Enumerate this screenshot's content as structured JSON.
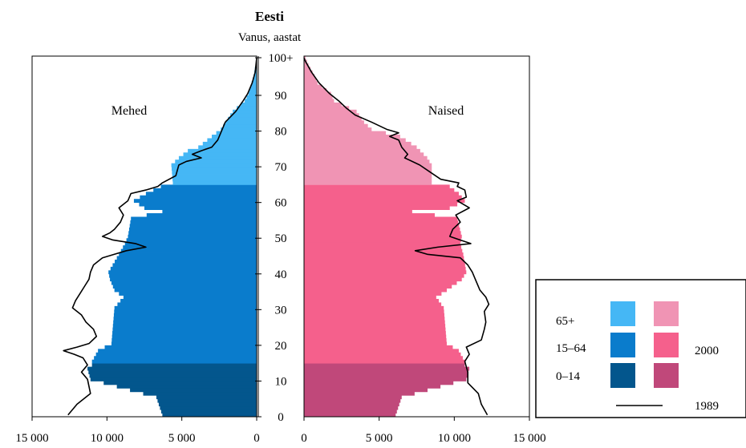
{
  "chart_data": {
    "type": "bar",
    "title": "Eesti",
    "subtitle": "Vanus, aastat",
    "left_panel_label": "Mehed",
    "right_panel_label": "Naised",
    "ylim": [
      0,
      100
    ],
    "y_ticks": [
      {
        "value": 0,
        "label": "0"
      },
      {
        "value": 10,
        "label": "10"
      },
      {
        "value": 20,
        "label": "20"
      },
      {
        "value": 30,
        "label": "30"
      },
      {
        "value": 40,
        "label": "40"
      },
      {
        "value": 50,
        "label": "50"
      },
      {
        "value": 60,
        "label": "60"
      },
      {
        "value": 70,
        "label": "70"
      },
      {
        "value": 80,
        "label": "80"
      },
      {
        "value": 90,
        "label": "90"
      },
      {
        "value": 100,
        "label": "100+"
      }
    ],
    "x_ticks_left": [
      {
        "value": 15000,
        "label": "15 000"
      },
      {
        "value": 10000,
        "label": "10 000"
      },
      {
        "value": 5000,
        "label": "5 000"
      },
      {
        "value": 0,
        "label": "0"
      }
    ],
    "x_ticks_right": [
      {
        "value": 0,
        "label": "0"
      },
      {
        "value": 5000,
        "label": "5 000"
      },
      {
        "value": 10000,
        "label": "10 000"
      },
      {
        "value": 15000,
        "label": "15 000"
      }
    ],
    "xlim": [
      0,
      15000
    ],
    "age_groups": [
      {
        "label": "65+",
        "from": 65,
        "to": 100,
        "male_color": "#45b7f5",
        "female_color": "#f094b4"
      },
      {
        "label": "15–64",
        "from": 15,
        "to": 64,
        "male_color": "#0a7ccc",
        "female_color": "#f5608c"
      },
      {
        "label": "0–14",
        "from": 0,
        "to": 14,
        "male_color": "#03568d",
        "female_color": "#c0487a"
      }
    ],
    "legend": {
      "year_2000": "2000",
      "year_1989": "1989"
    },
    "series": [
      {
        "name": "2000",
        "role": "male-bars",
        "points": [
          [
            0,
            6300
          ],
          [
            5,
            6700
          ],
          [
            10,
            11100
          ],
          [
            13,
            11300
          ],
          [
            14,
            11000
          ],
          [
            15,
            11000
          ],
          [
            18,
            10600
          ],
          [
            20,
            9700
          ],
          [
            25,
            9600
          ],
          [
            30,
            9500
          ],
          [
            33,
            8900
          ],
          [
            35,
            9500
          ],
          [
            38,
            9800
          ],
          [
            40,
            9900
          ],
          [
            45,
            9200
          ],
          [
            48,
            8800
          ],
          [
            50,
            8600
          ],
          [
            55,
            8400
          ],
          [
            57,
            6300
          ],
          [
            58,
            7500
          ],
          [
            60,
            8200
          ],
          [
            62,
            7400
          ],
          [
            64,
            6400
          ],
          [
            65,
            5600
          ],
          [
            70,
            5700
          ],
          [
            72,
            5200
          ],
          [
            74,
            4600
          ],
          [
            75,
            3900
          ],
          [
            80,
            2400
          ],
          [
            85,
            1600
          ],
          [
            88,
            800
          ],
          [
            90,
            550
          ],
          [
            95,
            200
          ],
          [
            98,
            80
          ],
          [
            100,
            30
          ]
        ]
      },
      {
        "name": "2000",
        "role": "female-bars",
        "points": [
          [
            0,
            6100
          ],
          [
            5,
            6500
          ],
          [
            10,
            10800
          ],
          [
            13,
            11000
          ],
          [
            14,
            10700
          ],
          [
            15,
            10700
          ],
          [
            18,
            10300
          ],
          [
            20,
            9500
          ],
          [
            25,
            9400
          ],
          [
            30,
            9300
          ],
          [
            33,
            8800
          ],
          [
            35,
            9500
          ],
          [
            38,
            10500
          ],
          [
            40,
            10800
          ],
          [
            45,
            10600
          ],
          [
            48,
            10400
          ],
          [
            50,
            10500
          ],
          [
            55,
            10200
          ],
          [
            57,
            7200
          ],
          [
            58,
            9700
          ],
          [
            60,
            10700
          ],
          [
            62,
            10300
          ],
          [
            64,
            9700
          ],
          [
            65,
            8500
          ],
          [
            70,
            8500
          ],
          [
            72,
            8200
          ],
          [
            75,
            7500
          ],
          [
            78,
            6400
          ],
          [
            80,
            4500
          ],
          [
            82,
            4000
          ],
          [
            85,
            3500
          ],
          [
            88,
            2000
          ],
          [
            90,
            1800
          ],
          [
            93,
            900
          ],
          [
            95,
            700
          ],
          [
            98,
            300
          ],
          [
            100,
            100
          ]
        ]
      },
      {
        "name": "1989",
        "role": "male-line",
        "points": [
          [
            0,
            12600
          ],
          [
            3,
            12000
          ],
          [
            6,
            11100
          ],
          [
            10,
            11300
          ],
          [
            12,
            11700
          ],
          [
            14,
            11300
          ],
          [
            16,
            11600
          ],
          [
            17,
            12200
          ],
          [
            18,
            12900
          ],
          [
            19,
            12000
          ],
          [
            20,
            11200
          ],
          [
            22,
            10700
          ],
          [
            24,
            10900
          ],
          [
            26,
            11400
          ],
          [
            28,
            11700
          ],
          [
            30,
            12300
          ],
          [
            32,
            12100
          ],
          [
            34,
            11800
          ],
          [
            36,
            11500
          ],
          [
            38,
            11200
          ],
          [
            40,
            11100
          ],
          [
            42,
            10900
          ],
          [
            44,
            10300
          ],
          [
            45,
            9500
          ],
          [
            46,
            8700
          ],
          [
            47,
            7400
          ],
          [
            48,
            8100
          ],
          [
            49,
            9600
          ],
          [
            50,
            10300
          ],
          [
            51,
            9800
          ],
          [
            52,
            9500
          ],
          [
            54,
            9100
          ],
          [
            56,
            8900
          ],
          [
            58,
            9200
          ],
          [
            60,
            8600
          ],
          [
            62,
            8400
          ],
          [
            63,
            7400
          ],
          [
            64,
            6600
          ],
          [
            65,
            6300
          ],
          [
            67,
            5400
          ],
          [
            70,
            5200
          ],
          [
            71,
            4700
          ],
          [
            72,
            3700
          ],
          [
            73,
            4300
          ],
          [
            74,
            3700
          ],
          [
            75,
            3000
          ],
          [
            77,
            2600
          ],
          [
            80,
            2300
          ],
          [
            82,
            2100
          ],
          [
            85,
            1400
          ],
          [
            88,
            900
          ],
          [
            90,
            600
          ],
          [
            93,
            300
          ],
          [
            96,
            100
          ],
          [
            100,
            0
          ]
        ]
      },
      {
        "name": "1989",
        "role": "female-line",
        "points": [
          [
            0,
            12200
          ],
          [
            3,
            11800
          ],
          [
            6,
            11600
          ],
          [
            9,
            10900
          ],
          [
            12,
            10900
          ],
          [
            15,
            10700
          ],
          [
            17,
            11000
          ],
          [
            19,
            10800
          ],
          [
            21,
            11800
          ],
          [
            24,
            12000
          ],
          [
            26,
            12100
          ],
          [
            29,
            12000
          ],
          [
            31,
            12300
          ],
          [
            33,
            12100
          ],
          [
            35,
            11700
          ],
          [
            37,
            11500
          ],
          [
            39,
            11300
          ],
          [
            40,
            11200
          ],
          [
            42,
            10900
          ],
          [
            44,
            10400
          ],
          [
            45,
            8200
          ],
          [
            46,
            7400
          ],
          [
            47,
            8900
          ],
          [
            48,
            11100
          ],
          [
            49,
            10400
          ],
          [
            50,
            9700
          ],
          [
            52,
            9900
          ],
          [
            54,
            10400
          ],
          [
            56,
            10100
          ],
          [
            58,
            11000
          ],
          [
            60,
            10200
          ],
          [
            61,
            10800
          ],
          [
            63,
            10700
          ],
          [
            64,
            10200
          ],
          [
            65,
            10300
          ],
          [
            66,
            9100
          ],
          [
            68,
            8400
          ],
          [
            70,
            7700
          ],
          [
            72,
            6700
          ],
          [
            73,
            6900
          ],
          [
            75,
            6500
          ],
          [
            77,
            6300
          ],
          [
            78,
            5700
          ],
          [
            79,
            6300
          ],
          [
            80,
            5500
          ],
          [
            82,
            4500
          ],
          [
            84,
            3400
          ],
          [
            86,
            2800
          ],
          [
            88,
            2300
          ],
          [
            90,
            1700
          ],
          [
            93,
            1000
          ],
          [
            96,
            500
          ],
          [
            99,
            100
          ],
          [
            100,
            0
          ]
        ]
      }
    ],
    "grid": false,
    "legend_placement": "bottom-right"
  }
}
